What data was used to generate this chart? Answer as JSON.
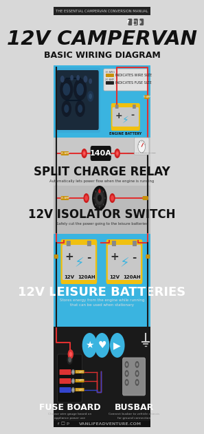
{
  "bg_light": "#d8d8d8",
  "bg_blue": "#3ab4e0",
  "bg_gray": "#c8c8c8",
  "bg_dark": "#1a1a1a",
  "header_bg": "#222222",
  "title_main": "12V CAMPERVAN",
  "title_sub": "BASIC WIRING DIAGRAM",
  "header_text": "THE ESSENTIAL CAMPERVAN CONVERSION MANUAL",
  "s1_title": "SPLIT CHARGE RELAY",
  "s1_sub": "Automatically lets power flow when the engine is running",
  "s2_title": "12V ISOLATOR SWITCH",
  "s2_sub": "Safely cut the power going to the leisure batteries",
  "s3_title": "12V LEISURE BATTERIES",
  "s3_sub": "Stores energy from the engine while running\nthat can be used when stationary",
  "s4a_title": "FUSE BOARD",
  "s4a_sub": "Choose wire gauge based on\nappliance power use",
  "s4b_title": "BUSBAR",
  "s4b_sub": "Connect busbar to vehicle chassis\nfor ground connection",
  "footer": "VANLIFEADVENTURE.COM",
  "red": "#e03030",
  "black_wire": "#1a1a1a",
  "yellow_bat": "#f0c010",
  "bat_body": "#c8c8c8",
  "fuse_amber": "#c8900a",
  "engine_dark": "#1a2a3a",
  "engine_mid": "#2a4060",
  "relay_dark": "#111111"
}
